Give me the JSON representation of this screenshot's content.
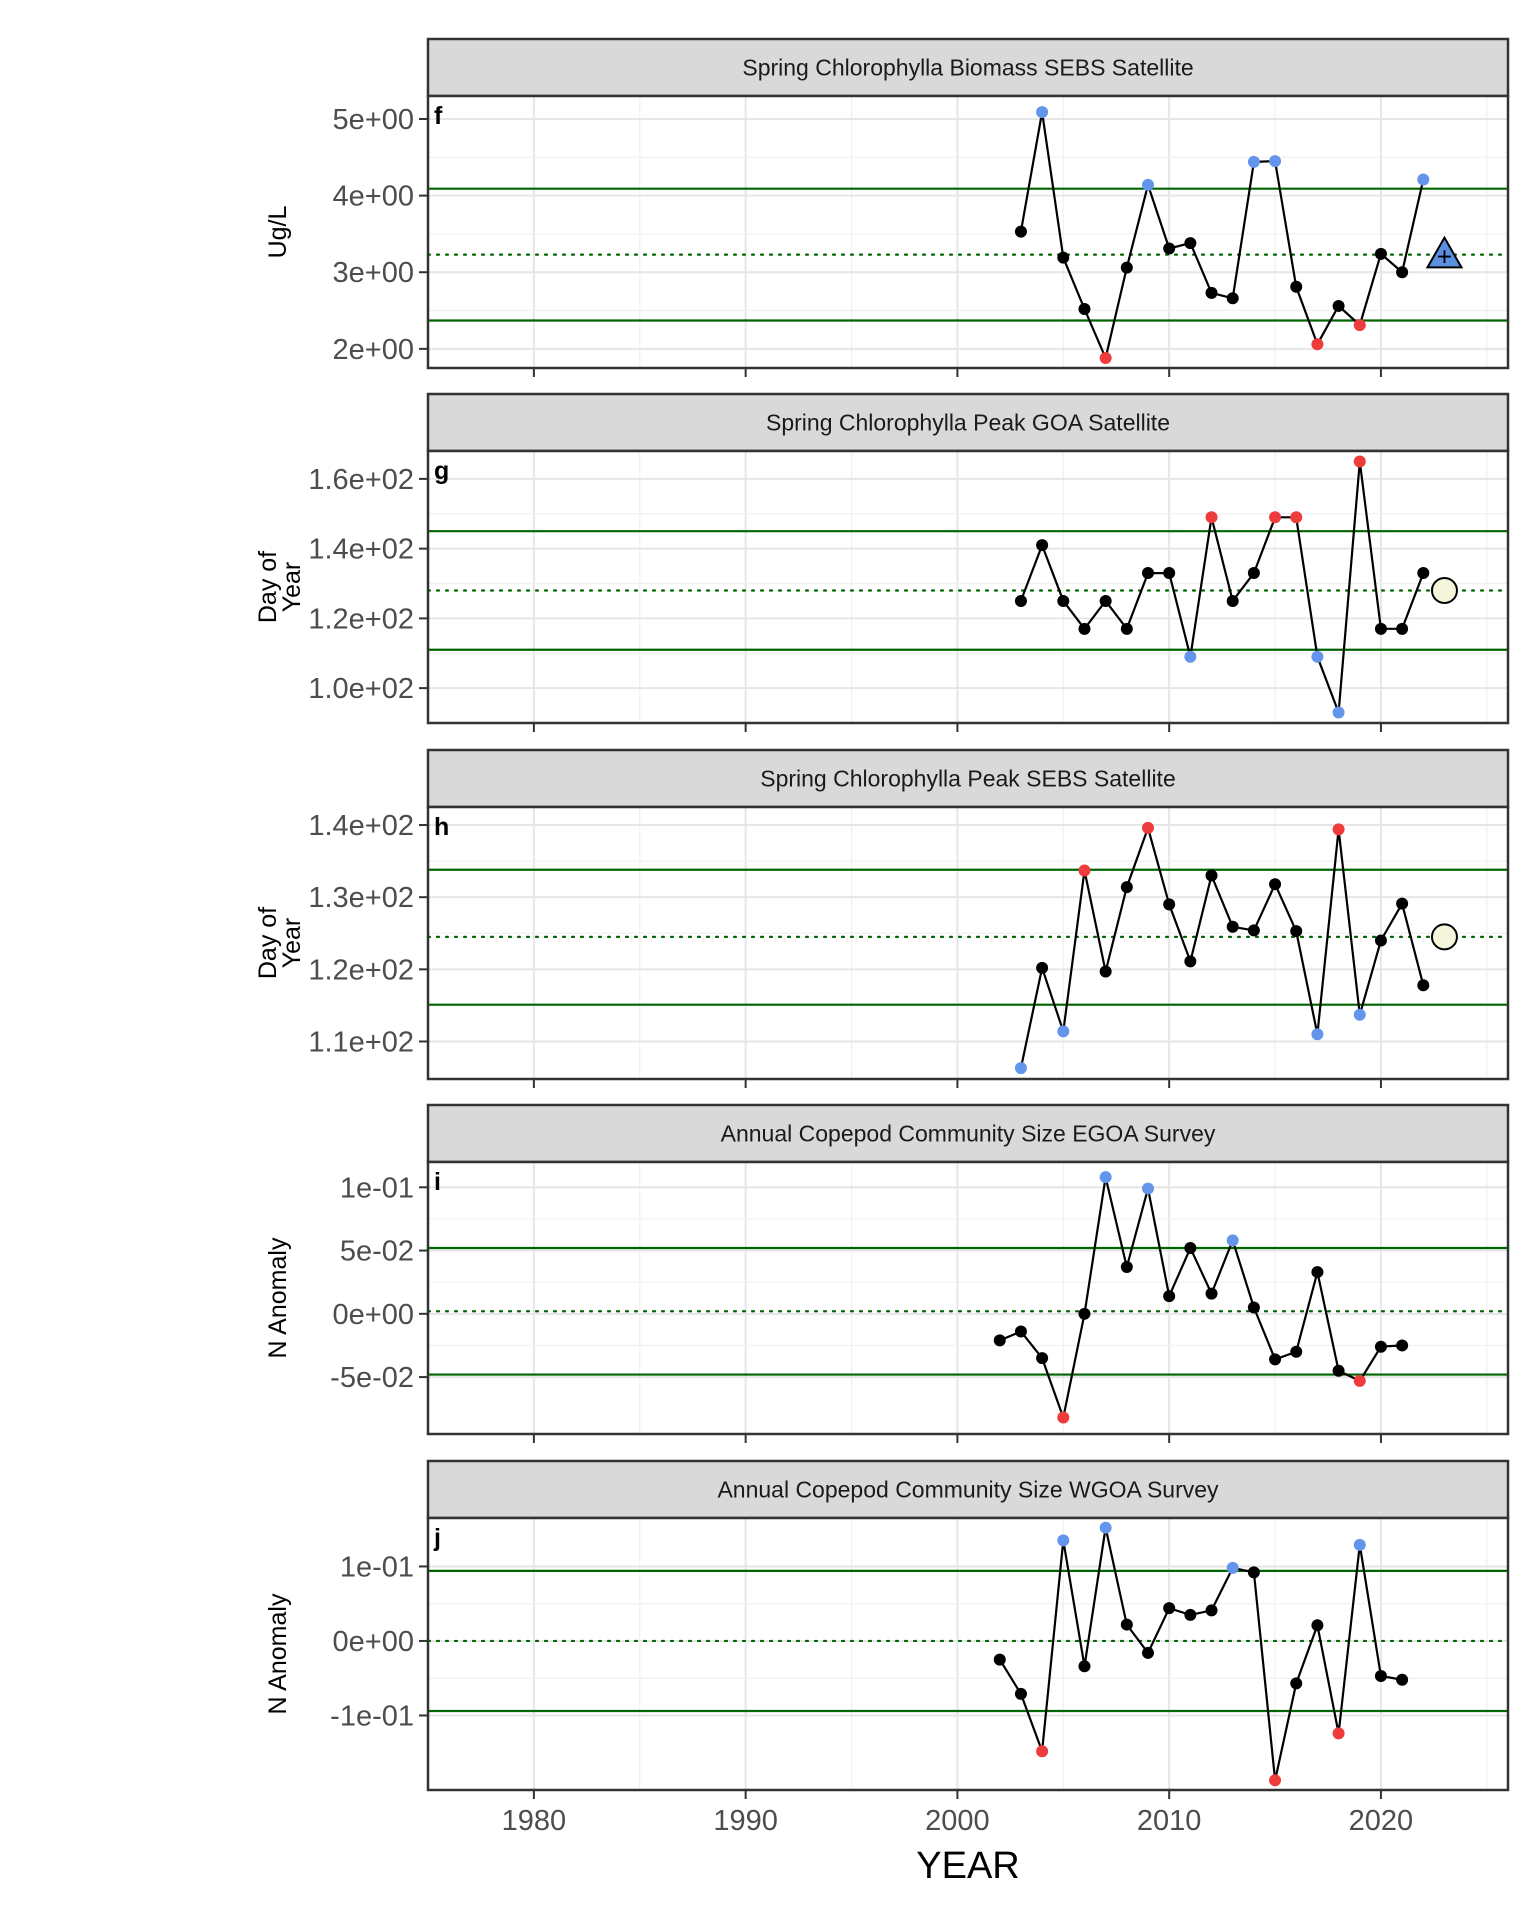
{
  "figure": {
    "xlabel": "YEAR",
    "x_ticks": [
      1980,
      1990,
      2000,
      2010,
      2020
    ],
    "xlim": [
      1975,
      2026
    ]
  },
  "colors": {
    "normal_point": "#000000",
    "high_point": "#6495ED",
    "low_point": "#EE3B3B",
    "threshold_line": "#006400",
    "mean_line": "#006400",
    "strip_fill": "#D9D9D9",
    "forecast_circle": "#F5F5DC",
    "forecast_triangle": "#5B8FE0"
  },
  "chart_data": [
    {
      "type": "line",
      "title": "Spring Chlorophylla Biomass SEBS Satellite",
      "panel_label": "f",
      "ylabel": "Ug/L",
      "ylim": [
        1.75,
        5.3
      ],
      "y_ticks": [
        2,
        3,
        4,
        5
      ],
      "y_tick_labels": [
        "2e+00",
        "3e+00",
        "4e+00",
        "5e+00"
      ],
      "mean": 3.23,
      "upper": 4.09,
      "lower": 2.37,
      "points": [
        {
          "x": 2003,
          "y": 3.53,
          "flag": "normal"
        },
        {
          "x": 2004,
          "y": 5.09,
          "flag": "high"
        },
        {
          "x": 2005,
          "y": 3.19,
          "flag": "normal"
        },
        {
          "x": 2006,
          "y": 2.52,
          "flag": "normal"
        },
        {
          "x": 2007,
          "y": 1.88,
          "flag": "low"
        },
        {
          "x": 2008,
          "y": 3.06,
          "flag": "normal"
        },
        {
          "x": 2009,
          "y": 4.14,
          "flag": "high"
        },
        {
          "x": 2010,
          "y": 3.31,
          "flag": "normal"
        },
        {
          "x": 2011,
          "y": 3.38,
          "flag": "normal"
        },
        {
          "x": 2012,
          "y": 2.73,
          "flag": "normal"
        },
        {
          "x": 2013,
          "y": 2.66,
          "flag": "normal"
        },
        {
          "x": 2014,
          "y": 4.44,
          "flag": "high"
        },
        {
          "x": 2015,
          "y": 4.45,
          "flag": "high"
        },
        {
          "x": 2016,
          "y": 2.81,
          "flag": "normal"
        },
        {
          "x": 2017,
          "y": 2.06,
          "flag": "low"
        },
        {
          "x": 2018,
          "y": 2.56,
          "flag": "normal"
        },
        {
          "x": 2019,
          "y": 2.31,
          "flag": "low"
        },
        {
          "x": 2020,
          "y": 3.24,
          "flag": "normal"
        },
        {
          "x": 2021,
          "y": 3.0,
          "flag": "normal"
        },
        {
          "x": 2022,
          "y": 4.21,
          "flag": "high"
        }
      ],
      "trend_symbol": {
        "x": 2023,
        "y": 3.23,
        "shape": "triangle-up",
        "glyph": "+"
      }
    },
    {
      "type": "line",
      "title": "Spring Chlorophylla Peak GOA Satellite",
      "panel_label": "g",
      "ylabel": "Day of Year",
      "ylim": [
        90,
        168
      ],
      "y_ticks": [
        100,
        120,
        140,
        160
      ],
      "y_tick_labels": [
        "1.0e+02",
        "1.2e+02",
        "1.4e+02",
        "1.6e+02"
      ],
      "mean": 128,
      "upper": 145,
      "lower": 111,
      "points": [
        {
          "x": 2003,
          "y": 125,
          "flag": "normal"
        },
        {
          "x": 2004,
          "y": 141,
          "flag": "normal"
        },
        {
          "x": 2005,
          "y": 125,
          "flag": "normal"
        },
        {
          "x": 2006,
          "y": 117,
          "flag": "normal"
        },
        {
          "x": 2007,
          "y": 125,
          "flag": "normal"
        },
        {
          "x": 2008,
          "y": 117,
          "flag": "normal"
        },
        {
          "x": 2009,
          "y": 133,
          "flag": "normal"
        },
        {
          "x": 2010,
          "y": 133,
          "flag": "normal"
        },
        {
          "x": 2011,
          "y": 109,
          "flag": "high"
        },
        {
          "x": 2012,
          "y": 149,
          "flag": "low"
        },
        {
          "x": 2013,
          "y": 125,
          "flag": "normal"
        },
        {
          "x": 2014,
          "y": 133,
          "flag": "normal"
        },
        {
          "x": 2015,
          "y": 149,
          "flag": "low"
        },
        {
          "x": 2016,
          "y": 149,
          "flag": "low"
        },
        {
          "x": 2017,
          "y": 109,
          "flag": "high"
        },
        {
          "x": 2018,
          "y": 93,
          "flag": "high"
        },
        {
          "x": 2019,
          "y": 165,
          "flag": "low"
        },
        {
          "x": 2020,
          "y": 117,
          "flag": "normal"
        },
        {
          "x": 2021,
          "y": 117,
          "flag": "normal"
        },
        {
          "x": 2022,
          "y": 133,
          "flag": "normal"
        }
      ],
      "trend_symbol": {
        "x": 2023,
        "y": 128,
        "shape": "circle",
        "glyph": ""
      }
    },
    {
      "type": "line",
      "title": "Spring Chlorophylla Peak SEBS Satellite",
      "panel_label": "h",
      "ylabel": "Day of Year",
      "ylim": [
        104.8,
        142.5
      ],
      "y_ticks": [
        110,
        120,
        130,
        140
      ],
      "y_tick_labels": [
        "1.1e+02",
        "1.2e+02",
        "1.3e+02",
        "1.4e+02"
      ],
      "mean": 124.5,
      "upper": 133.8,
      "lower": 115.1,
      "points": [
        {
          "x": 2003,
          "y": 106.3,
          "flag": "high"
        },
        {
          "x": 2004,
          "y": 120.2,
          "flag": "normal"
        },
        {
          "x": 2005,
          "y": 111.4,
          "flag": "high"
        },
        {
          "x": 2006,
          "y": 133.7,
          "flag": "low"
        },
        {
          "x": 2007,
          "y": 119.7,
          "flag": "normal"
        },
        {
          "x": 2008,
          "y": 131.4,
          "flag": "normal"
        },
        {
          "x": 2009,
          "y": 139.6,
          "flag": "low"
        },
        {
          "x": 2010,
          "y": 129.0,
          "flag": "normal"
        },
        {
          "x": 2011,
          "y": 121.1,
          "flag": "normal"
        },
        {
          "x": 2012,
          "y": 133.0,
          "flag": "normal"
        },
        {
          "x": 2013,
          "y": 125.9,
          "flag": "normal"
        },
        {
          "x": 2014,
          "y": 125.4,
          "flag": "normal"
        },
        {
          "x": 2015,
          "y": 131.8,
          "flag": "normal"
        },
        {
          "x": 2016,
          "y": 125.3,
          "flag": "normal"
        },
        {
          "x": 2017,
          "y": 111.0,
          "flag": "high"
        },
        {
          "x": 2018,
          "y": 139.4,
          "flag": "low"
        },
        {
          "x": 2019,
          "y": 113.7,
          "flag": "high"
        },
        {
          "x": 2020,
          "y": 124.0,
          "flag": "normal"
        },
        {
          "x": 2021,
          "y": 129.1,
          "flag": "normal"
        },
        {
          "x": 2022,
          "y": 117.8,
          "flag": "normal"
        }
      ],
      "trend_symbol": {
        "x": 2023,
        "y": 124.5,
        "shape": "circle",
        "glyph": ""
      }
    },
    {
      "type": "line",
      "title": "Annual Copepod Community Size EGOA Survey",
      "panel_label": "i",
      "ylabel": "N Anomaly",
      "ylim": [
        -0.095,
        0.12
      ],
      "y_ticks": [
        -0.05,
        0,
        0.05,
        0.1
      ],
      "y_tick_labels": [
        "-5e-02",
        "0e+00",
        "5e-02",
        "1e-01"
      ],
      "mean": 0.002,
      "upper": 0.052,
      "lower": -0.048,
      "points": [
        {
          "x": 2002,
          "y": -0.021,
          "flag": "normal"
        },
        {
          "x": 2003,
          "y": -0.014,
          "flag": "normal"
        },
        {
          "x": 2004,
          "y": -0.035,
          "flag": "normal"
        },
        {
          "x": 2005,
          "y": -0.082,
          "flag": "low"
        },
        {
          "x": 2006,
          "y": 0.0,
          "flag": "normal"
        },
        {
          "x": 2007,
          "y": 0.108,
          "flag": "high"
        },
        {
          "x": 2008,
          "y": 0.037,
          "flag": "normal"
        },
        {
          "x": 2009,
          "y": 0.099,
          "flag": "high"
        },
        {
          "x": 2010,
          "y": 0.014,
          "flag": "normal"
        },
        {
          "x": 2011,
          "y": 0.052,
          "flag": "normal"
        },
        {
          "x": 2012,
          "y": 0.016,
          "flag": "normal"
        },
        {
          "x": 2013,
          "y": 0.058,
          "flag": "high"
        },
        {
          "x": 2014,
          "y": 0.005,
          "flag": "normal"
        },
        {
          "x": 2015,
          "y": -0.036,
          "flag": "normal"
        },
        {
          "x": 2016,
          "y": -0.03,
          "flag": "normal"
        },
        {
          "x": 2017,
          "y": 0.033,
          "flag": "normal"
        },
        {
          "x": 2018,
          "y": -0.045,
          "flag": "normal"
        },
        {
          "x": 2019,
          "y": -0.053,
          "flag": "low"
        },
        {
          "x": 2020,
          "y": -0.026,
          "flag": "normal"
        },
        {
          "x": 2021,
          "y": -0.025,
          "flag": "normal"
        }
      ]
    },
    {
      "type": "line",
      "title": "Annual Copepod Community Size WGOA Survey",
      "panel_label": "j",
      "ylabel": "N Anomaly",
      "ylim": [
        -0.2,
        0.165
      ],
      "y_ticks": [
        -0.1,
        0,
        0.1
      ],
      "y_tick_labels": [
        "-1e-01",
        "0e+00",
        "1e-01"
      ],
      "mean": 0.0,
      "upper": 0.094,
      "lower": -0.094,
      "points": [
        {
          "x": 2002,
          "y": -0.025,
          "flag": "normal"
        },
        {
          "x": 2003,
          "y": -0.071,
          "flag": "normal"
        },
        {
          "x": 2004,
          "y": -0.148,
          "flag": "low"
        },
        {
          "x": 2005,
          "y": 0.135,
          "flag": "high"
        },
        {
          "x": 2006,
          "y": -0.034,
          "flag": "normal"
        },
        {
          "x": 2007,
          "y": 0.152,
          "flag": "high"
        },
        {
          "x": 2008,
          "y": 0.022,
          "flag": "normal"
        },
        {
          "x": 2009,
          "y": -0.016,
          "flag": "normal"
        },
        {
          "x": 2010,
          "y": 0.044,
          "flag": "normal"
        },
        {
          "x": 2011,
          "y": 0.035,
          "flag": "normal"
        },
        {
          "x": 2012,
          "y": 0.041,
          "flag": "normal"
        },
        {
          "x": 2013,
          "y": 0.098,
          "flag": "high"
        },
        {
          "x": 2014,
          "y": 0.092,
          "flag": "normal"
        },
        {
          "x": 2015,
          "y": -0.187,
          "flag": "low"
        },
        {
          "x": 2016,
          "y": -0.057,
          "flag": "normal"
        },
        {
          "x": 2017,
          "y": 0.021,
          "flag": "normal"
        },
        {
          "x": 2018,
          "y": -0.124,
          "flag": "low"
        },
        {
          "x": 2019,
          "y": 0.129,
          "flag": "high"
        },
        {
          "x": 2020,
          "y": -0.047,
          "flag": "normal"
        },
        {
          "x": 2021,
          "y": -0.052,
          "flag": "normal"
        }
      ]
    }
  ]
}
